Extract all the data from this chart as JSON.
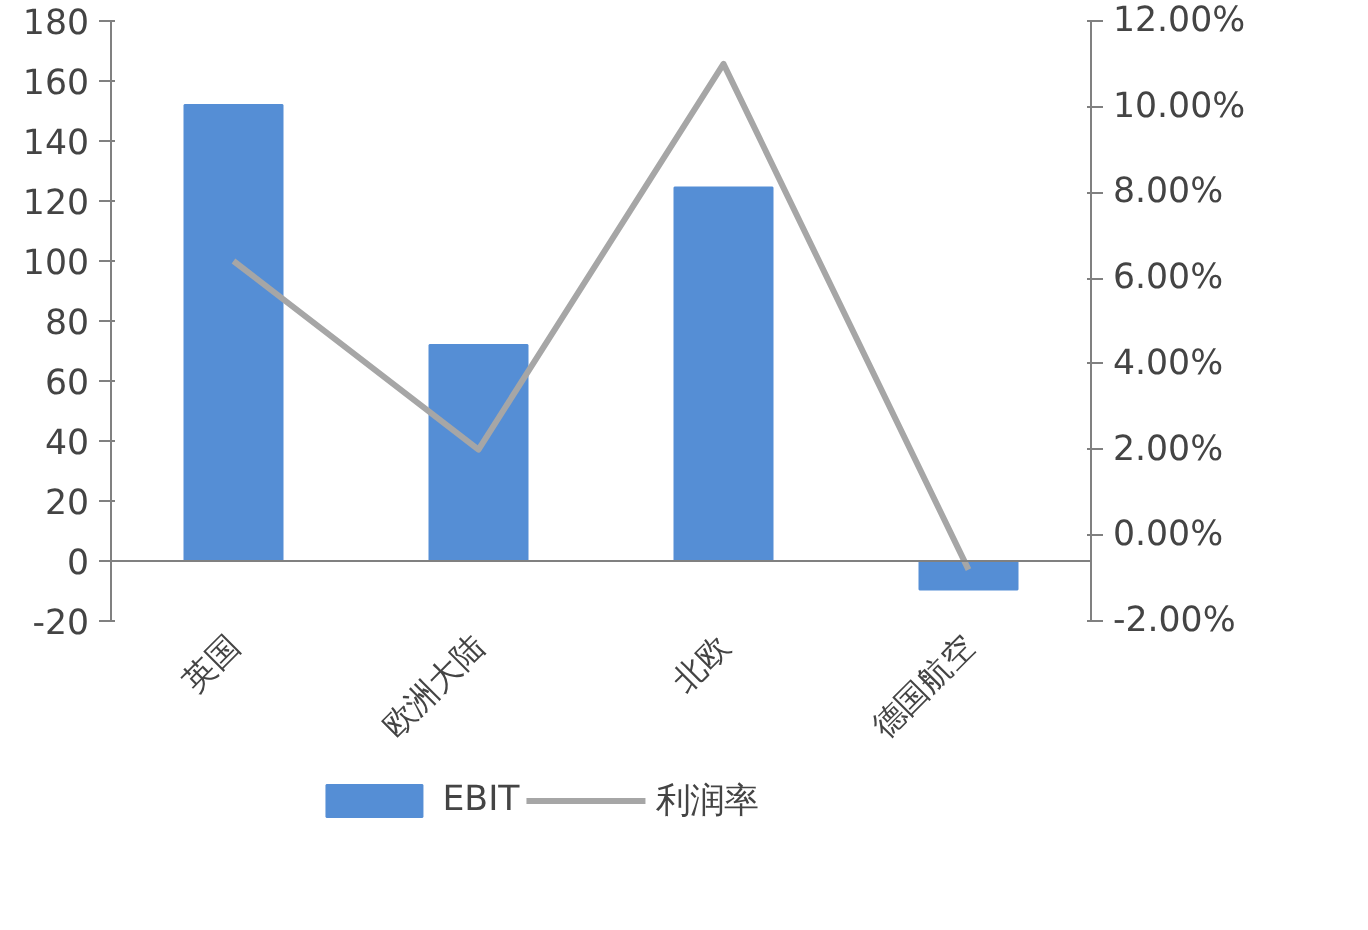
{
  "chart_data": {
    "type": "bar",
    "categories": [
      "英国",
      "欧洲大陆",
      "北欧",
      "德国航空"
    ],
    "series": [
      {
        "name": "EBIT",
        "color": "#558ed5",
        "values": [
          152,
          72,
          124.5,
          -9.5
        ]
      },
      {
        "name": "利润率",
        "type": "line",
        "axis": "y2",
        "color": "#a6a6a6",
        "values": [
          6.4,
          2.0,
          11.0,
          -0.8
        ]
      }
    ],
    "ylim": [
      -20,
      180
    ],
    "yticks": [
      -20,
      0,
      20,
      40,
      60,
      80,
      100,
      120,
      140,
      160,
      180
    ],
    "y2lim": [
      -2,
      12
    ],
    "y2ticks": [
      {
        "value": -2,
        "label": "-2.00%"
      },
      {
        "value": 0,
        "label": "0.00%"
      },
      {
        "value": 2,
        "label": "2.00%"
      },
      {
        "value": 4,
        "label": "4.00%"
      },
      {
        "value": 6,
        "label": "6.00%"
      },
      {
        "value": 8,
        "label": "8.00%"
      },
      {
        "value": 10,
        "label": "10.00%"
      },
      {
        "value": 12,
        "label": "12.00%"
      }
    ],
    "grid": false,
    "legend": "bottom",
    "marker": "none",
    "line_style": "solid"
  }
}
